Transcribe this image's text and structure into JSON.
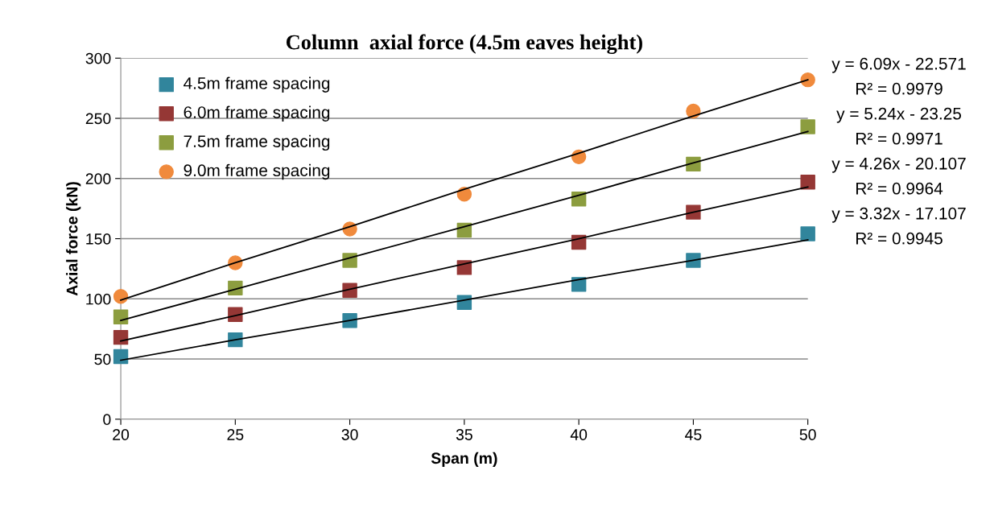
{
  "chart_data": {
    "type": "scatter",
    "title": "Column  axial force (4.5m eaves height)",
    "xlabel": "Span (m)",
    "ylabel": "Axial force (kN)",
    "x": [
      20,
      25,
      30,
      35,
      40,
      45,
      50
    ],
    "series": [
      {
        "name": "4.5m frame spacing",
        "color": "#31859c",
        "marker": "square",
        "values": [
          52,
          66,
          82,
          97,
          112,
          132,
          154
        ]
      },
      {
        "name": "6.0m frame spacing",
        "color": "#953735",
        "marker": "square",
        "values": [
          68,
          87,
          107,
          126,
          147,
          172,
          197
        ]
      },
      {
        "name": "7.5m frame spacing",
        "color": "#8c9d3f",
        "marker": "square",
        "values": [
          85,
          109,
          132,
          157,
          183,
          212,
          243
        ]
      },
      {
        "name": "9.0m frame spacing",
        "color": "#f08a3c",
        "marker": "circle",
        "values": [
          102,
          130,
          158,
          187,
          218,
          256,
          282
        ]
      },
      {
        "type": "line",
        "color": "#000000",
        "marker": "none",
        "values": [
          99,
          130,
          160,
          191,
          221,
          252,
          282
        ]
      },
      {
        "type": "line",
        "color": "#000000",
        "marker": "none",
        "values": [
          82,
          108,
          134,
          160,
          186,
          213,
          239
        ]
      },
      {
        "type": "line",
        "color": "#000000",
        "marker": "none",
        "values": [
          65,
          86,
          108,
          129,
          150,
          172,
          193
        ]
      },
      {
        "type": "line",
        "color": "#000000",
        "marker": "none",
        "values": [
          49,
          66,
          82,
          99,
          116,
          132,
          149
        ]
      }
    ],
    "annotations": [
      "y = 6.09x - 22.571",
      "R² = 0.9979",
      "y = 5.24x - 23.25",
      "R² = 0.9971",
      "y = 4.26x - 20.107",
      "R² = 0.9964",
      "y = 3.32x - 17.107",
      "R² = 0.9945"
    ],
    "xlim": [
      20,
      50
    ],
    "xticks": [
      20,
      25,
      30,
      35,
      40,
      45,
      50
    ],
    "ylim": [
      0,
      300
    ],
    "yticks": [
      0,
      50,
      100,
      150,
      200,
      250,
      300
    ],
    "grid": "y",
    "legend": "top left"
  }
}
